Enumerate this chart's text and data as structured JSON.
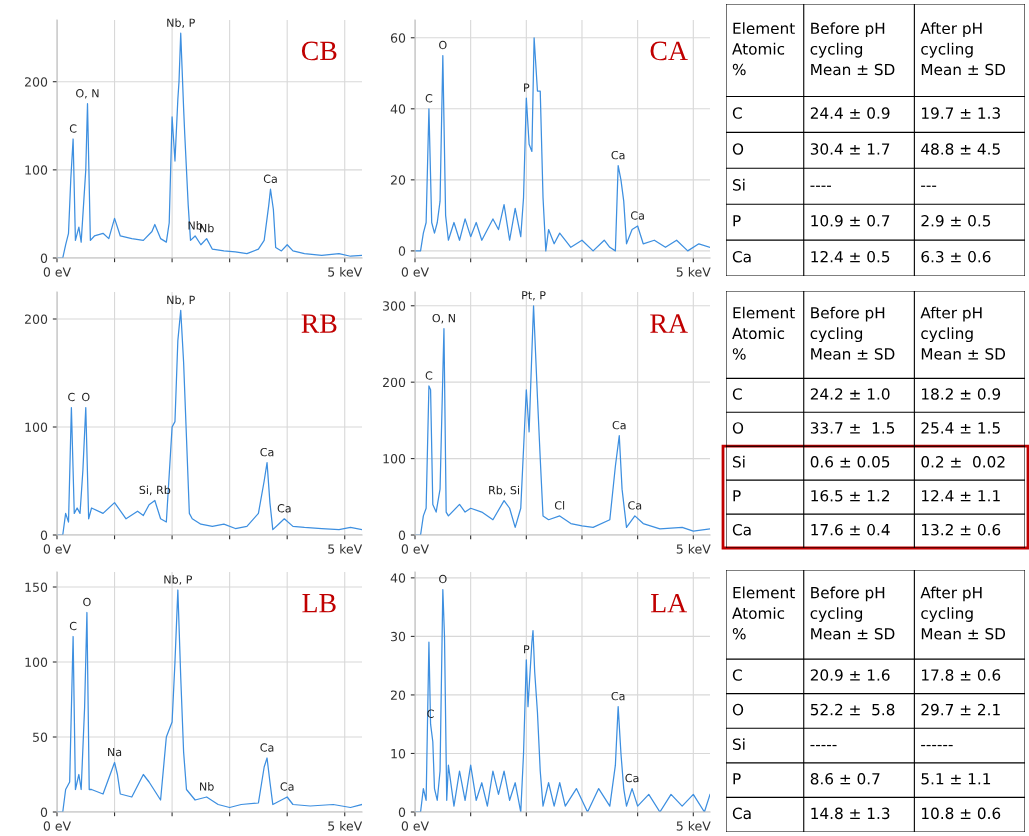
{
  "chart_data": [
    {
      "type": "line",
      "title": "CB",
      "xlim": [
        0,
        5.3
      ],
      "ylim": [
        0,
        270
      ],
      "xticks": [
        {
          "value": 0,
          "label": "0 eV"
        },
        {
          "value": 1,
          "label": null
        },
        {
          "value": 2,
          "label": null
        },
        {
          "value": 3,
          "label": null
        },
        {
          "value": 4,
          "label": null
        },
        {
          "value": 5,
          "label": "5 keV"
        }
      ],
      "yticks": [
        0,
        100,
        200
      ],
      "grid": true,
      "marker": "none",
      "line_style": "solid",
      "series": [
        {
          "color": "#3d8fe0",
          "x": [
            0,
            0.1,
            0.15,
            0.2,
            0.24,
            0.28,
            0.32,
            0.38,
            0.42,
            0.5,
            0.53,
            0.58,
            0.65,
            0.8,
            0.9,
            1.0,
            1.1,
            1.3,
            1.5,
            1.65,
            1.7,
            1.8,
            1.9,
            1.95,
            2.0,
            2.05,
            2.1,
            2.12,
            2.15,
            2.2,
            2.22,
            2.28,
            2.32,
            2.4,
            2.5,
            2.6,
            2.7,
            2.9,
            3.1,
            3.3,
            3.5,
            3.6,
            3.68,
            3.71,
            3.76,
            3.8,
            3.9,
            4.0,
            4.1,
            4.3,
            4.6,
            4.9,
            5.1,
            5.3
          ],
          "values": [
            0,
            0,
            15,
            28,
            90,
            135,
            20,
            35,
            18,
            100,
            175,
            20,
            25,
            28,
            22,
            45,
            25,
            22,
            20,
            30,
            38,
            22,
            18,
            40,
            160,
            110,
            180,
            200,
            255,
            170,
            140,
            60,
            20,
            25,
            15,
            22,
            10,
            8,
            7,
            5,
            10,
            20,
            60,
            78,
            55,
            12,
            8,
            15,
            8,
            5,
            3,
            5,
            2,
            3
          ]
        }
      ],
      "annotations": [
        {
          "text": "C",
          "x": 0.28,
          "y": 135
        },
        {
          "text": "O, N",
          "x": 0.53,
          "y": 175
        },
        {
          "text": "Nb, P",
          "x": 2.15,
          "y": 255
        },
        {
          "text": "Nb",
          "x": 2.4,
          "y": 25
        },
        {
          "text": "Nb",
          "x": 2.6,
          "y": 22
        },
        {
          "text": "Ca",
          "x": 3.71,
          "y": 78
        }
      ]
    },
    {
      "type": "line",
      "title": "CA",
      "xlim": [
        0,
        5.3
      ],
      "ylim": [
        -2,
        65
      ],
      "xticks": [
        {
          "value": 0,
          "label": "0 eV"
        },
        {
          "value": 1,
          "label": null
        },
        {
          "value": 2,
          "label": null
        },
        {
          "value": 3,
          "label": null
        },
        {
          "value": 4,
          "label": null
        },
        {
          "value": 5,
          "label": "5 keV"
        }
      ],
      "yticks": [
        0,
        20,
        40,
        60
      ],
      "grid": true,
      "marker": "none",
      "line_style": "solid",
      "series": [
        {
          "color": "#3d8fe0",
          "x": [
            0,
            0.1,
            0.15,
            0.2,
            0.25,
            0.3,
            0.35,
            0.4,
            0.45,
            0.5,
            0.55,
            0.6,
            0.7,
            0.8,
            0.9,
            1.0,
            1.1,
            1.2,
            1.4,
            1.5,
            1.6,
            1.7,
            1.8,
            1.9,
            1.95,
            2.0,
            2.05,
            2.1,
            2.14,
            2.2,
            2.25,
            2.3,
            2.35,
            2.4,
            2.5,
            2.6,
            2.8,
            3.0,
            3.2,
            3.4,
            3.5,
            3.6,
            3.65,
            3.7,
            3.75,
            3.8,
            3.9,
            4.0,
            4.1,
            4.3,
            4.5,
            4.7,
            4.9,
            5.1,
            5.3
          ],
          "values": [
            0,
            0,
            5,
            8,
            40,
            8,
            5,
            8,
            14,
            55,
            10,
            3,
            8,
            3,
            9,
            4,
            8,
            3,
            9,
            6,
            13,
            3,
            12,
            4,
            15,
            43,
            30,
            28,
            60,
            45,
            45,
            15,
            0,
            6,
            2,
            5,
            1,
            3,
            0,
            3,
            1,
            0,
            24,
            20,
            14,
            2,
            6,
            7,
            2,
            3,
            1,
            3,
            0,
            2,
            1
          ]
        }
      ],
      "annotations": [
        {
          "text": "C",
          "x": 0.25,
          "y": 40
        },
        {
          "text": "O",
          "x": 0.5,
          "y": 55
        },
        {
          "text": "P",
          "x": 2.0,
          "y": 43
        },
        {
          "text": "Ca",
          "x": 3.65,
          "y": 24
        },
        {
          "text": "Ca",
          "x": 4.0,
          "y": 7
        }
      ]
    },
    {
      "type": "other",
      "annotations": [
        "Element\nAtomic\n%",
        "Before pH\ncycling\nMean ± SD",
        "After pH\ncycling\nMean ± SD",
        "C",
        "24.4 ± 0.9",
        "19.7 ± 1.3",
        "O",
        "30.4 ± 1.7",
        "48.8 ± 4.5",
        "Si",
        "----",
        "---",
        "P",
        "10.9 ± 0.7",
        "2.9 ± 0.5",
        "Ca",
        "12.4 ± 0.5",
        "6.3 ± 0.6"
      ]
    },
    {
      "type": "line",
      "title": "RB",
      "xlim": [
        0,
        5.3
      ],
      "ylim": [
        0,
        225
      ],
      "xticks": [
        {
          "value": 0,
          "label": "0 eV"
        },
        {
          "value": 1,
          "label": null
        },
        {
          "value": 2,
          "label": null
        },
        {
          "value": 3,
          "label": null
        },
        {
          "value": 4,
          "label": null
        },
        {
          "value": 5,
          "label": "5 keV"
        }
      ],
      "yticks": [
        0,
        100,
        200
      ],
      "grid": true,
      "marker": "none",
      "line_style": "solid",
      "series": [
        {
          "color": "#3d8fe0",
          "x": [
            0,
            0.1,
            0.15,
            0.2,
            0.25,
            0.3,
            0.35,
            0.4,
            0.45,
            0.5,
            0.55,
            0.6,
            0.8,
            1.0,
            1.2,
            1.4,
            1.5,
            1.6,
            1.7,
            1.8,
            1.9,
            2.0,
            2.05,
            2.1,
            2.15,
            2.2,
            2.25,
            2.3,
            2.35,
            2.5,
            2.7,
            2.9,
            3.1,
            3.3,
            3.5,
            3.6,
            3.65,
            3.7,
            3.75,
            3.85,
            3.95,
            4.1,
            4.3,
            4.6,
            4.9,
            5.1,
            5.3
          ],
          "values": [
            0,
            0,
            20,
            12,
            118,
            20,
            25,
            20,
            60,
            118,
            15,
            25,
            20,
            30,
            15,
            22,
            18,
            28,
            32,
            15,
            12,
            100,
            105,
            180,
            208,
            160,
            90,
            20,
            15,
            10,
            8,
            10,
            6,
            8,
            20,
            50,
            67,
            30,
            5,
            10,
            15,
            8,
            7,
            6,
            5,
            7,
            5
          ]
        }
      ],
      "annotations": [
        {
          "text": "C",
          "x": 0.25,
          "y": 118
        },
        {
          "text": "O",
          "x": 0.5,
          "y": 118
        },
        {
          "text": "Nb, P",
          "x": 2.15,
          "y": 208
        },
        {
          "text": "Si, Rb",
          "x": 1.7,
          "y": 32
        },
        {
          "text": "Ca",
          "x": 3.65,
          "y": 67
        },
        {
          "text": "Ca",
          "x": 3.95,
          "y": 15
        }
      ]
    },
    {
      "type": "line",
      "title": "RA",
      "xlim": [
        0,
        5.3
      ],
      "ylim": [
        0,
        318
      ],
      "xticks": [
        {
          "value": 0,
          "label": "0 eV"
        },
        {
          "value": 1,
          "label": null
        },
        {
          "value": 2,
          "label": null
        },
        {
          "value": 3,
          "label": null
        },
        {
          "value": 4,
          "label": null
        },
        {
          "value": 5,
          "label": "5 keV"
        }
      ],
      "yticks": [
        0,
        100,
        200,
        300
      ],
      "grid": true,
      "marker": "none",
      "line_style": "solid",
      "series": [
        {
          "color": "#3d8fe0",
          "x": [
            0,
            0.1,
            0.15,
            0.2,
            0.25,
            0.28,
            0.32,
            0.38,
            0.45,
            0.5,
            0.52,
            0.56,
            0.6,
            0.8,
            0.9,
            1.0,
            1.2,
            1.4,
            1.6,
            1.7,
            1.8,
            1.9,
            2.0,
            2.05,
            2.1,
            2.13,
            2.2,
            2.25,
            2.3,
            2.4,
            2.6,
            2.8,
            3.0,
            3.2,
            3.5,
            3.6,
            3.67,
            3.72,
            3.8,
            3.95,
            4.1,
            4.4,
            4.8,
            5.0,
            5.3
          ],
          "values": [
            0,
            0,
            25,
            35,
            195,
            190,
            40,
            30,
            60,
            210,
            270,
            30,
            25,
            40,
            30,
            35,
            30,
            20,
            45,
            35,
            10,
            35,
            190,
            135,
            240,
            300,
            180,
            100,
            25,
            20,
            25,
            15,
            12,
            10,
            20,
            90,
            130,
            60,
            10,
            25,
            15,
            8,
            10,
            5,
            8
          ]
        }
      ],
      "annotations": [
        {
          "text": "C",
          "x": 0.25,
          "y": 195
        },
        {
          "text": "O, N",
          "x": 0.52,
          "y": 270
        },
        {
          "text": "Pt, P",
          "x": 2.13,
          "y": 300
        },
        {
          "text": "Rb, Si",
          "x": 1.6,
          "y": 45
        },
        {
          "text": "Cl",
          "x": 2.6,
          "y": 25
        },
        {
          "text": "Ca",
          "x": 3.67,
          "y": 130
        },
        {
          "text": "Ca",
          "x": 3.95,
          "y": 25
        }
      ]
    },
    {
      "type": "other",
      "annotations": [
        "Element\nAtomic\n%",
        "Before pH\ncycling\nMean ± SD",
        "After pH\ncycling\nMean ± SD",
        "C",
        "24.2 ± 1.0",
        "18.2 ± 0.9",
        "O",
        "33.7 ±  1.5",
        "25.4 ± 1.5",
        "Si",
        "0.6 ± 0.05",
        "0.2 ±  0.02",
        "P",
        "16.5 ± 1.2",
        "12.4 ± 1.1",
        "Ca",
        "17.6 ± 0.4",
        "13.2 ± 0.6"
      ]
    },
    {
      "type": "line",
      "title": "LB",
      "xlim": [
        0,
        5.3
      ],
      "ylim": [
        0,
        160
      ],
      "xticks": [
        {
          "value": 0,
          "label": "0 eV"
        },
        {
          "value": 1,
          "label": null
        },
        {
          "value": 2,
          "label": null
        },
        {
          "value": 3,
          "label": null
        },
        {
          "value": 4,
          "label": null
        },
        {
          "value": 5,
          "label": "5 keV"
        }
      ],
      "yticks": [
        0,
        50,
        100,
        150
      ],
      "grid": true,
      "marker": "none",
      "line_style": "solid",
      "series": [
        {
          "color": "#3d8fe0",
          "x": [
            0,
            0.1,
            0.15,
            0.22,
            0.26,
            0.28,
            0.32,
            0.38,
            0.42,
            0.48,
            0.52,
            0.56,
            0.6,
            0.8,
            1.0,
            1.05,
            1.1,
            1.3,
            1.5,
            1.6,
            1.8,
            1.9,
            2.0,
            2.05,
            2.1,
            2.15,
            2.2,
            2.25,
            2.4,
            2.6,
            2.8,
            3.0,
            3.2,
            3.5,
            3.6,
            3.65,
            3.7,
            3.75,
            3.9,
            4.0,
            4.1,
            4.4,
            4.8,
            5.1,
            5.3
          ],
          "values": [
            0,
            0,
            15,
            20,
            85,
            117,
            15,
            25,
            15,
            70,
            133,
            15,
            15,
            12,
            33,
            25,
            12,
            10,
            25,
            20,
            8,
            50,
            60,
            100,
            148,
            90,
            40,
            15,
            8,
            10,
            5,
            3,
            5,
            6,
            30,
            36,
            20,
            5,
            8,
            10,
            5,
            4,
            5,
            3,
            5
          ]
        }
      ],
      "annotations": [
        {
          "text": "C",
          "x": 0.28,
          "y": 117
        },
        {
          "text": "O",
          "x": 0.52,
          "y": 133
        },
        {
          "text": "Nb, P",
          "x": 2.1,
          "y": 148
        },
        {
          "text": "Na",
          "x": 1.0,
          "y": 33
        },
        {
          "text": "Nb",
          "x": 2.6,
          "y": 10
        },
        {
          "text": "Ca",
          "x": 3.65,
          "y": 36
        },
        {
          "text": "Ca",
          "x": 4.0,
          "y": 10
        }
      ]
    },
    {
      "type": "line",
      "title": "LA",
      "xlim": [
        0,
        5.3
      ],
      "ylim": [
        0,
        41
      ],
      "xticks": [
        {
          "value": 0,
          "label": "0 eV"
        },
        {
          "value": 1,
          "label": null
        },
        {
          "value": 2,
          "label": null
        },
        {
          "value": 3,
          "label": null
        },
        {
          "value": 4,
          "label": null
        },
        {
          "value": 5,
          "label": "5 keV"
        }
      ],
      "yticks": [
        0,
        10,
        20,
        30,
        40
      ],
      "grid": true,
      "marker": "none",
      "line_style": "solid",
      "series": [
        {
          "color": "#3d8fe0",
          "x": [
            0,
            0.1,
            0.15,
            0.2,
            0.25,
            0.28,
            0.32,
            0.35,
            0.4,
            0.45,
            0.5,
            0.53,
            0.57,
            0.6,
            0.7,
            0.8,
            0.9,
            1.0,
            1.1,
            1.2,
            1.3,
            1.4,
            1.5,
            1.6,
            1.7,
            1.8,
            1.9,
            1.95,
            2.0,
            2.03,
            2.1,
            2.12,
            2.15,
            2.2,
            2.25,
            2.3,
            2.4,
            2.5,
            2.6,
            2.7,
            2.9,
            3.1,
            3.3,
            3.5,
            3.6,
            3.65,
            3.7,
            3.75,
            3.8,
            3.9,
            4.0,
            4.2,
            4.4,
            4.6,
            4.8,
            5.0,
            5.2,
            5.3
          ],
          "values": [
            0,
            0,
            4,
            2,
            29,
            15,
            12,
            4,
            2,
            7,
            38,
            30,
            2,
            8,
            1,
            7,
            2,
            8,
            2,
            5,
            1,
            7,
            3,
            7,
            2,
            5,
            0,
            10,
            26,
            18,
            29,
            31,
            24,
            17,
            7,
            1,
            5,
            1,
            5,
            1,
            4,
            0,
            4,
            1,
            8,
            18,
            10,
            4,
            1,
            4,
            1,
            3,
            0,
            3,
            1,
            3,
            0,
            3
          ]
        }
      ],
      "annotations": [
        {
          "text": "C",
          "x": 0.28,
          "y": 15
        },
        {
          "text": "O",
          "x": 0.5,
          "y": 38
        },
        {
          "text": "P",
          "x": 2.0,
          "y": 26
        },
        {
          "text": "Ca",
          "x": 3.65,
          "y": 18
        },
        {
          "text": "Ca",
          "x": 3.9,
          "y": 4
        }
      ]
    },
    {
      "type": "other",
      "annotations": [
        "Element\nAtomic\n%",
        "Before pH\ncycling\nMean ± SD",
        "After pH\ncycling\nMean ± SD",
        "C",
        "20.9 ± 1.6",
        "17.8 ± 0.6",
        "O",
        "52.2 ±  5.8",
        "29.7 ± 2.1",
        "Si",
        "-----",
        "------",
        "P",
        "8.6 ± 0.7",
        "5.1 ± 1.1",
        "Ca",
        "14.8 ± 1.3",
        "10.8 ± 0.6"
      ]
    }
  ]
}
